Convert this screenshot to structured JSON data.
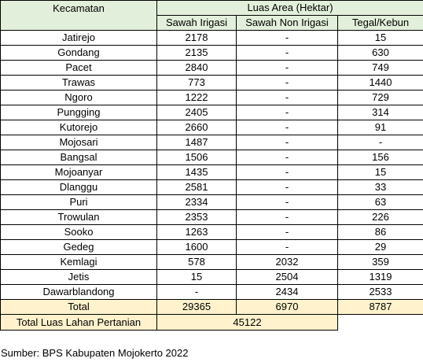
{
  "table": {
    "header": {
      "kecamatan": "Kecamatan",
      "group": "Luas Area (Hektar)",
      "sawah_irigasi": "Sawah Irigasi",
      "sawah_non_irigasi": "Sawah Non Irigasi",
      "tegal_kebun": "Tegal/Kebun"
    },
    "rows": [
      {
        "kecamatan": "Jatirejo",
        "sawah_irigasi": "2178",
        "sawah_non_irigasi": "-",
        "tegal_kebun": "15"
      },
      {
        "kecamatan": "Gondang",
        "sawah_irigasi": "2135",
        "sawah_non_irigasi": "-",
        "tegal_kebun": "630"
      },
      {
        "kecamatan": "Pacet",
        "sawah_irigasi": "2840",
        "sawah_non_irigasi": "-",
        "tegal_kebun": "749"
      },
      {
        "kecamatan": "Trawas",
        "sawah_irigasi": "773",
        "sawah_non_irigasi": "-",
        "tegal_kebun": "1440"
      },
      {
        "kecamatan": "Ngoro",
        "sawah_irigasi": "1222",
        "sawah_non_irigasi": "-",
        "tegal_kebun": "729"
      },
      {
        "kecamatan": "Pungging",
        "sawah_irigasi": "2405",
        "sawah_non_irigasi": "-",
        "tegal_kebun": "314"
      },
      {
        "kecamatan": "Kutorejo",
        "sawah_irigasi": "2660",
        "sawah_non_irigasi": "-",
        "tegal_kebun": "91"
      },
      {
        "kecamatan": "Mojosari",
        "sawah_irigasi": "1487",
        "sawah_non_irigasi": "-",
        "tegal_kebun": "-"
      },
      {
        "kecamatan": "Bangsal",
        "sawah_irigasi": "1506",
        "sawah_non_irigasi": "-",
        "tegal_kebun": "156"
      },
      {
        "kecamatan": "Mojoanyar",
        "sawah_irigasi": "1435",
        "sawah_non_irigasi": "-",
        "tegal_kebun": "15"
      },
      {
        "kecamatan": "Dlanggu",
        "sawah_irigasi": "2581",
        "sawah_non_irigasi": "-",
        "tegal_kebun": "33"
      },
      {
        "kecamatan": "Puri",
        "sawah_irigasi": "2334",
        "sawah_non_irigasi": "-",
        "tegal_kebun": "63"
      },
      {
        "kecamatan": "Trowulan",
        "sawah_irigasi": "2353",
        "sawah_non_irigasi": "-",
        "tegal_kebun": "226"
      },
      {
        "kecamatan": "Sooko",
        "sawah_irigasi": "1263",
        "sawah_non_irigasi": "-",
        "tegal_kebun": "86"
      },
      {
        "kecamatan": "Gedeg",
        "sawah_irigasi": "1600",
        "sawah_non_irigasi": "-",
        "tegal_kebun": "29"
      },
      {
        "kecamatan": "Kemlagi",
        "sawah_irigasi": "578",
        "sawah_non_irigasi": "2032",
        "tegal_kebun": "359"
      },
      {
        "kecamatan": "Jetis",
        "sawah_irigasi": "15",
        "sawah_non_irigasi": "2504",
        "tegal_kebun": "1319"
      },
      {
        "kecamatan": "Dawarblandong",
        "sawah_irigasi": "-",
        "sawah_non_irigasi": "2434",
        "tegal_kebun": "2533"
      }
    ],
    "total": {
      "label": "Total",
      "sawah_irigasi": "29365",
      "sawah_non_irigasi": "6970",
      "tegal_kebun": "8787"
    },
    "grand_total": {
      "label": "Total Luas Lahan Pertanian",
      "value": "45122"
    }
  },
  "source": "Sumber: BPS Kabupaten Mojokerto 2022",
  "colors": {
    "header_fill": "#e2efda",
    "total_fill": "#fff2cc",
    "border": "#000000"
  }
}
